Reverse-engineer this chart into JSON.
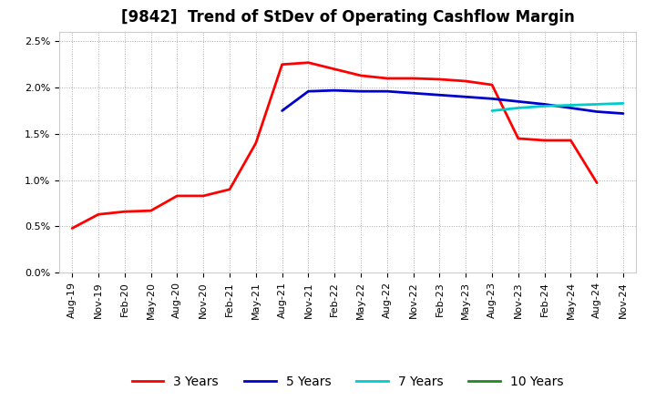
{
  "title": "[9842]  Trend of StDev of Operating Cashflow Margin",
  "title_fontsize": 12,
  "background_color": "#ffffff",
  "grid_color": "#aaaaaa",
  "ylim": [
    0.0,
    0.026
  ],
  "yticks": [
    0.0,
    0.005,
    0.01,
    0.015,
    0.02,
    0.025
  ],
  "x_tick_labels": [
    "Aug-19",
    "Nov-19",
    "Feb-20",
    "May-20",
    "Aug-20",
    "Nov-20",
    "Feb-21",
    "May-21",
    "Aug-21",
    "Nov-21",
    "Feb-22",
    "May-22",
    "Aug-22",
    "Nov-22",
    "Feb-23",
    "May-23",
    "Aug-23",
    "Nov-23",
    "Feb-24",
    "May-24",
    "Aug-24",
    "Nov-24"
  ],
  "series": {
    "3yr": {
      "color": "#ff0000",
      "label": "3 Years",
      "linewidth": 2.0,
      "data": [
        0.0048,
        0.0063,
        0.0066,
        0.0067,
        0.0083,
        0.0083,
        0.009,
        0.014,
        0.0225,
        0.0227,
        0.022,
        0.0213,
        0.021,
        0.021,
        0.0209,
        0.0207,
        0.0203,
        0.0145,
        0.0143,
        0.0143,
        0.0097,
        null
      ]
    },
    "5yr": {
      "color": "#0000cc",
      "label": "5 Years",
      "linewidth": 2.0,
      "data": [
        null,
        null,
        null,
        null,
        null,
        null,
        null,
        null,
        0.0175,
        0.0196,
        0.0197,
        0.0196,
        0.0196,
        0.0194,
        0.0192,
        0.019,
        0.0188,
        0.0185,
        0.0182,
        0.0178,
        0.0174,
        0.0172
      ]
    },
    "7yr": {
      "color": "#00cccc",
      "label": "7 Years",
      "linewidth": 2.0,
      "data": [
        null,
        null,
        null,
        null,
        null,
        null,
        null,
        null,
        null,
        null,
        null,
        null,
        null,
        null,
        null,
        null,
        0.0175,
        0.0178,
        0.018,
        0.0181,
        0.0182,
        0.0183
      ]
    },
    "10yr": {
      "color": "#228822",
      "label": "10 Years",
      "linewidth": 2.0,
      "data": [
        null,
        null,
        null,
        null,
        null,
        null,
        null,
        null,
        null,
        null,
        null,
        null,
        null,
        null,
        null,
        null,
        null,
        null,
        null,
        null,
        null,
        null
      ]
    }
  },
  "legend_fontsize": 10,
  "tick_fontsize": 8
}
